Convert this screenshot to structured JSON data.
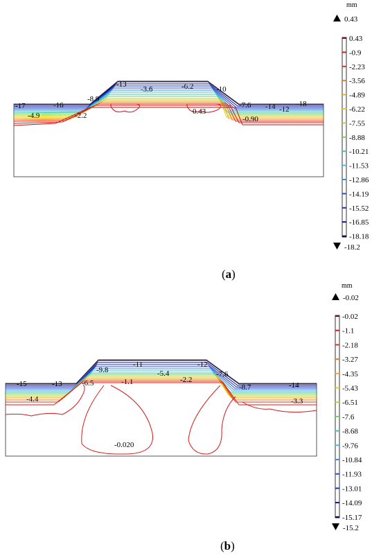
{
  "panel_a": {
    "caption_letter": "a",
    "unit": "mm",
    "legend_max": "0.43",
    "legend_min": "-18.2",
    "legend_levels": [
      "0.43",
      "-0.9",
      "-2.23",
      "-3.56",
      "-4.89",
      "-6.22",
      "-7.55",
      "-8.88",
      "-10.21",
      "-11.53",
      "-12.86",
      "-14.19",
      "-15.52",
      "-16.85",
      "-18.18"
    ],
    "legend_colors": [
      "#7a1010",
      "#d81818",
      "#e83018",
      "#ee7a20",
      "#f2a820",
      "#e8c828",
      "#b0d838",
      "#70d060",
      "#40c8a0",
      "#40c0d8",
      "#3090e0",
      "#2050d8",
      "#1830c0",
      "#101090",
      "#080850"
    ],
    "contour_labels": [
      "-17",
      "-16",
      "-4.9",
      "-2.2",
      "-8.9",
      "-13",
      "-3.6",
      "-6.2",
      "-10",
      "0.43",
      "-7.6",
      "-14",
      "-12",
      "-18",
      "-0.90"
    ]
  },
  "panel_b": {
    "caption_letter": "b",
    "unit": "mm",
    "legend_max": "-0.02",
    "legend_min": "-15.2",
    "legend_levels": [
      "-0.02",
      "-1.1",
      "-2.18",
      "-3.27",
      "-4.35",
      "-5.43",
      "-6.51",
      "-7.6",
      "-8.68",
      "-9.76",
      "-10.84",
      "-11.93",
      "-13.01",
      "-14.09",
      "-15.17"
    ],
    "legend_colors": [
      "#7a1010",
      "#d81818",
      "#e83018",
      "#ee7a20",
      "#f2a820",
      "#e8c828",
      "#b0d838",
      "#70d060",
      "#40c8a0",
      "#40c0d8",
      "#3090e0",
      "#2050d8",
      "#1830c0",
      "#101090",
      "#080850"
    ],
    "contour_labels": [
      "-15",
      "-13",
      "-6.5",
      "-9.8",
      "-11",
      "-12",
      "-7.6",
      "-5.4",
      "-1.1",
      "-2.2",
      "-8.7",
      "-14",
      "-4.4",
      "-3.3",
      "-0.020"
    ]
  }
}
